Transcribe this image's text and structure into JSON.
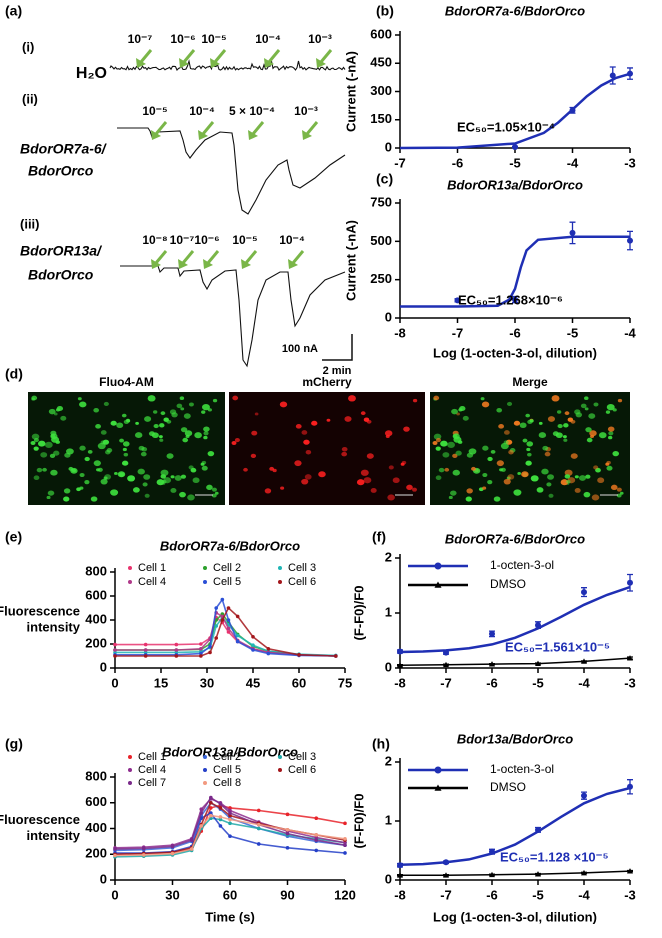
{
  "panel_labels": [
    "(a)",
    "(b)",
    "(c)",
    "(d)",
    "(e)",
    "(f)",
    "(g)",
    "(h)"
  ],
  "panel_a": {
    "rows": [
      {
        "label": "(i)",
        "name": [
          "H₂O"
        ],
        "doses": [
          "10⁻⁷",
          "10⁻⁶",
          "10⁻⁵",
          "10⁻⁴",
          "10⁻³"
        ]
      },
      {
        "label": "(ii)",
        "name": [
          "BdorOR7a-6/",
          "BdorOrco"
        ],
        "doses": [
          "10⁻⁵",
          "10⁻⁴",
          "5 × 10⁻⁴",
          "10⁻³"
        ]
      },
      {
        "label": "(iii)",
        "name": [
          "BdorOR13a/",
          "BdorOrco"
        ],
        "doses": [
          "10⁻⁸",
          "10⁻⁷",
          "10⁻⁶",
          "10⁻⁵",
          "10⁻⁴"
        ]
      }
    ],
    "scale_bar": {
      "current": "100 nA",
      "time": "2 min"
    }
  },
  "panel_d": {
    "channels": [
      "Fluo4-AM",
      "mCherry",
      "Merge"
    ]
  },
  "chart_data": [
    {
      "type": "errorbar",
      "title": "BdorOR7a-6/BdorOrco",
      "y_label": [
        "Current (-nA)"
      ],
      "x": [
        -5,
        -4,
        -3.3,
        -3
      ],
      "series": [
        {
          "color": "#1f2fb4",
          "marker": "circle",
          "values": [
            5,
            200,
            385,
            395
          ],
          "errors": [
            3,
            15,
            45,
            30
          ],
          "fit_x": [
            -7,
            -6,
            -5,
            -4.5,
            -4.25,
            -4,
            -3.75,
            -3.5,
            -3.25,
            -3
          ],
          "fit_values": [
            0,
            2,
            24,
            80,
            135,
            204,
            275,
            332,
            371,
            394
          ]
        }
      ],
      "xlim": [
        -7,
        -3
      ],
      "xticks": [
        -7,
        -6,
        -5,
        -4,
        -3
      ],
      "ylim": [
        0,
        600
      ],
      "yticks": [
        0,
        150,
        300,
        450,
        600
      ],
      "annotation": {
        "text": "EC₅₀=1.05×10⁻⁴",
        "color": "#000000"
      }
    },
    {
      "type": "errorbar",
      "title": "BdorOR13a/BdorOrco",
      "y_label": [
        "Current (-nA)"
      ],
      "x_label": "Log (1-octen-3-ol, dilution)",
      "x": [
        -7,
        -6,
        -5,
        -4
      ],
      "series": [
        {
          "color": "#1f2fb4",
          "marker": "circle",
          "values": [
            115,
            120,
            555,
            505
          ],
          "errors": [
            10,
            20,
            70,
            60
          ],
          "fit_x": [
            -8,
            -7,
            -6.3,
            -6.1,
            -6,
            -5.9,
            -5.8,
            -5.6,
            -5,
            -4
          ],
          "fit_values": [
            75,
            75,
            80,
            120,
            190,
            330,
            440,
            510,
            530,
            530
          ]
        }
      ],
      "xlim": [
        -8,
        -4
      ],
      "xticks": [
        -8,
        -7,
        -6,
        -5,
        -4
      ],
      "ylim": [
        0,
        750
      ],
      "yticks": [
        0,
        250,
        500,
        750
      ],
      "annotation": {
        "text": "EC₅₀=1.268×10⁻⁶",
        "color": "#000000"
      }
    },
    {
      "type": "timecourse",
      "title": "BdorOR7a-6/BdorOrco",
      "y_label": [
        "Fluorescence",
        "intensity"
      ],
      "x": [
        0,
        10,
        20,
        28,
        31,
        33,
        35,
        37,
        40,
        45,
        50,
        60,
        72
      ],
      "series": [
        {
          "name": "Cell 1",
          "color": "#e8336e",
          "values": [
            195,
            195,
            195,
            200,
            250,
            420,
            380,
            300,
            220,
            160,
            130,
            110,
            100
          ]
        },
        {
          "name": "Cell 2",
          "color": "#2ca02c",
          "values": [
            150,
            150,
            150,
            155,
            200,
            400,
            450,
            380,
            280,
            180,
            140,
            110,
            100
          ]
        },
        {
          "name": "Cell 3",
          "color": "#1fb5b5",
          "values": [
            130,
            130,
            130,
            135,
            170,
            350,
            420,
            360,
            270,
            190,
            140,
            115,
            105
          ]
        },
        {
          "name": "Cell 4",
          "color": "#b03a8a",
          "values": [
            150,
            150,
            150,
            160,
            240,
            460,
            430,
            330,
            230,
            160,
            130,
            110,
            100
          ]
        },
        {
          "name": "Cell 5",
          "color": "#2b4fd6",
          "values": [
            110,
            110,
            110,
            120,
            180,
            500,
            570,
            400,
            220,
            150,
            120,
            105,
            100
          ]
        },
        {
          "name": "Cell 6",
          "color": "#a3161b",
          "values": [
            100,
            100,
            100,
            100,
            130,
            250,
            400,
            500,
            430,
            260,
            160,
            110,
            100
          ]
        }
      ],
      "xlim": [
        0,
        75
      ],
      "xticks": [
        0,
        15,
        30,
        45,
        60,
        75
      ],
      "ylim": [
        0,
        800
      ],
      "yticks": [
        0,
        200,
        400,
        600,
        800
      ]
    },
    {
      "type": "errorbar",
      "title": "BdorOR7a-6/BdorOrco",
      "y_label": [
        "(F-F0)/F0"
      ],
      "x": [
        -8,
        -7,
        -6,
        -5,
        -4,
        -3
      ],
      "series": [
        {
          "name": "1-octen-3-ol",
          "color": "#1f2fb4",
          "marker": "circle",
          "values": [
            0.3,
            0.28,
            0.62,
            0.78,
            1.38,
            1.55
          ],
          "errors": [
            0.03,
            0.03,
            0.05,
            0.06,
            0.08,
            0.15
          ],
          "fit_x": [
            -8,
            -7.5,
            -7,
            -6.5,
            -6,
            -5.5,
            -5,
            -4.5,
            -4,
            -3.5,
            -3
          ],
          "fit_values": [
            0.29,
            0.3,
            0.32,
            0.36,
            0.43,
            0.55,
            0.72,
            0.93,
            1.15,
            1.33,
            1.47
          ]
        },
        {
          "name": "DMSO",
          "color": "#000000",
          "marker": "triangle",
          "values": [
            0.05,
            0.06,
            0.07,
            0.08,
            0.12,
            0.18
          ],
          "errors": [
            0.01,
            0.01,
            0.01,
            0.01,
            0.01,
            0.02
          ]
        }
      ],
      "xlim": [
        -8,
        -3
      ],
      "xticks": [
        -8,
        -7,
        -6,
        -5,
        -4,
        -3
      ],
      "ylim": [
        0,
        2
      ],
      "yticks": [
        0,
        1,
        2
      ],
      "annotation": {
        "text": "EC₅₀=1.561×10⁻⁵",
        "color": "#1f2fb4"
      }
    },
    {
      "type": "timecourse",
      "title": "BdorOR13a/BdorOrco",
      "y_label": [
        "Fluorescence",
        "intensity"
      ],
      "x_label": "Time (s)",
      "x": [
        0,
        15,
        30,
        40,
        45,
        50,
        55,
        60,
        75,
        90,
        105,
        120
      ],
      "series": [
        {
          "name": "Cell 1",
          "color": "#e8232a",
          "values": [
            200,
            205,
            215,
            240,
            380,
            560,
            580,
            560,
            540,
            510,
            480,
            440
          ]
        },
        {
          "name": "Cell 2",
          "color": "#3a66d8",
          "values": [
            230,
            235,
            250,
            300,
            500,
            600,
            550,
            480,
            400,
            340,
            300,
            270
          ]
        },
        {
          "name": "Cell 3",
          "color": "#1fa8a8",
          "values": [
            180,
            185,
            195,
            230,
            400,
            480,
            470,
            440,
            400,
            350,
            320,
            290
          ]
        },
        {
          "name": "Cell 4",
          "color": "#8e2c8e",
          "values": [
            250,
            255,
            270,
            320,
            550,
            630,
            600,
            540,
            450,
            380,
            330,
            290
          ]
        },
        {
          "name": "Cell 5",
          "color": "#2540c8",
          "values": [
            210,
            210,
            220,
            260,
            480,
            520,
            420,
            340,
            280,
            250,
            230,
            210
          ]
        },
        {
          "name": "Cell 6",
          "color": "#a3161b",
          "values": [
            200,
            205,
            215,
            250,
            430,
            600,
            560,
            500,
            440,
            390,
            350,
            310
          ]
        },
        {
          "name": "Cell 7",
          "color": "#7a2a8a",
          "values": [
            240,
            245,
            260,
            310,
            520,
            640,
            590,
            520,
            430,
            360,
            310,
            270
          ]
        },
        {
          "name": "Cell 8",
          "color": "#f29a80",
          "values": [
            190,
            195,
            205,
            240,
            420,
            500,
            490,
            470,
            430,
            390,
            350,
            320
          ]
        }
      ],
      "xlim": [
        0,
        120
      ],
      "xticks": [
        0,
        30,
        60,
        90,
        120
      ],
      "ylim": [
        0,
        800
      ],
      "yticks": [
        0,
        200,
        400,
        600,
        800
      ]
    },
    {
      "type": "errorbar",
      "title": "Bdor13a/BdorOrco",
      "y_label": [
        "(F-F0)/F0"
      ],
      "x_label": "Log (1-octen-3-ol, dilution)",
      "x": [
        -8,
        -7,
        -6,
        -5,
        -4,
        -3
      ],
      "series": [
        {
          "name": "1-octen-3-ol",
          "color": "#1f2fb4",
          "marker": "circle",
          "values": [
            0.25,
            0.3,
            0.48,
            0.85,
            1.43,
            1.58
          ],
          "errors": [
            0.03,
            0.02,
            0.04,
            0.04,
            0.06,
            0.12
          ],
          "fit_x": [
            -8,
            -7.5,
            -7,
            -6.5,
            -6,
            -5.5,
            -5,
            -4.5,
            -4,
            -3.5,
            -3
          ],
          "fit_values": [
            0.26,
            0.27,
            0.3,
            0.35,
            0.45,
            0.6,
            0.82,
            1.07,
            1.3,
            1.46,
            1.56
          ]
        },
        {
          "name": "DMSO",
          "color": "#000000",
          "marker": "triangle",
          "values": [
            0.08,
            0.08,
            0.09,
            0.1,
            0.12,
            0.15
          ],
          "errors": [
            0.01,
            0.01,
            0.01,
            0.01,
            0.01,
            0.01
          ]
        }
      ],
      "xlim": [
        -8,
        -3
      ],
      "xticks": [
        -8,
        -7,
        -6,
        -5,
        -4,
        -3
      ],
      "ylim": [
        0,
        2
      ],
      "yticks": [
        0,
        1,
        2
      ],
      "annotation": {
        "text": "EC₅₀=1.128 ×10⁻⁵",
        "color": "#1f2fb4"
      }
    }
  ]
}
